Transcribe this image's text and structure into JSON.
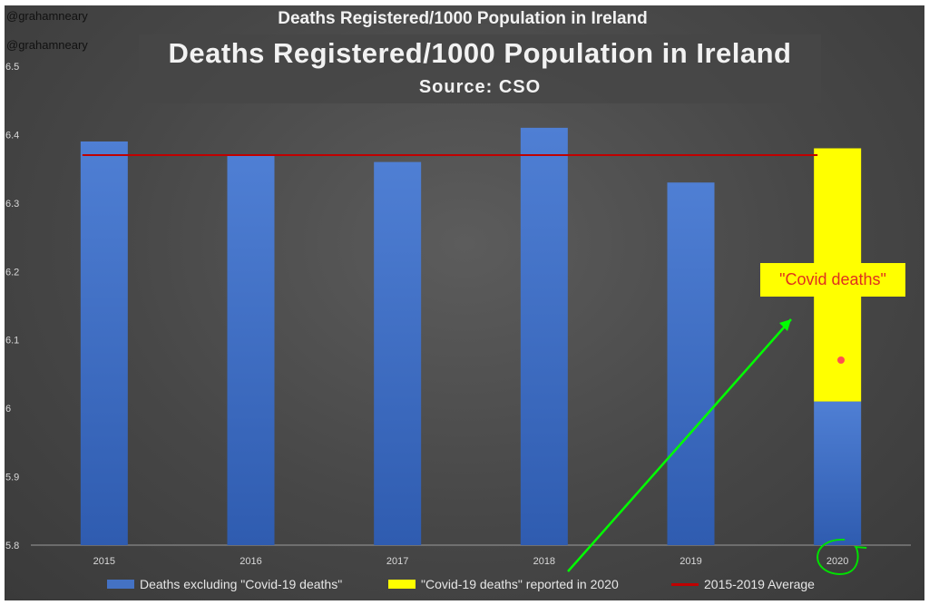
{
  "watermark": {
    "handle_1": "@grahamneary",
    "handle_2": "@grahamneary"
  },
  "chart_data": {
    "type": "bar",
    "title": "Deaths Registered/1000 Population in Ireland",
    "header_title": "Deaths Registered/1000 Population in Ireland",
    "subtitle": "Source: CSO",
    "categories": [
      "2015",
      "2016",
      "2017",
      "2018",
      "2019",
      "2020"
    ],
    "series": [
      {
        "name": "Deaths excluding \"Covid-19 deaths\"",
        "color": "#4472c4",
        "values": [
          6.39,
          6.37,
          6.36,
          6.41,
          6.33,
          6.01
        ]
      },
      {
        "name": "\"Covid-19 deaths\" reported in 2020",
        "color": "#ffff00",
        "stacked": true,
        "values": [
          0,
          0,
          0,
          0,
          0,
          0.37
        ]
      },
      {
        "name": "2015-2019 Average",
        "color": "#c00000",
        "type": "line",
        "value": 6.37
      }
    ],
    "ylim": [
      5.8,
      6.5
    ],
    "yticks": [
      "5.8",
      "5.9",
      "6",
      "6.1",
      "6.2",
      "6.3",
      "6.4",
      "6.5"
    ],
    "legend_position": "bottom",
    "annotation": "\"Covid deaths\"",
    "colors": {
      "background": "#4a4a4a",
      "annotation_arrow": "#00ff00",
      "highlight_circle": "#00e000"
    }
  }
}
